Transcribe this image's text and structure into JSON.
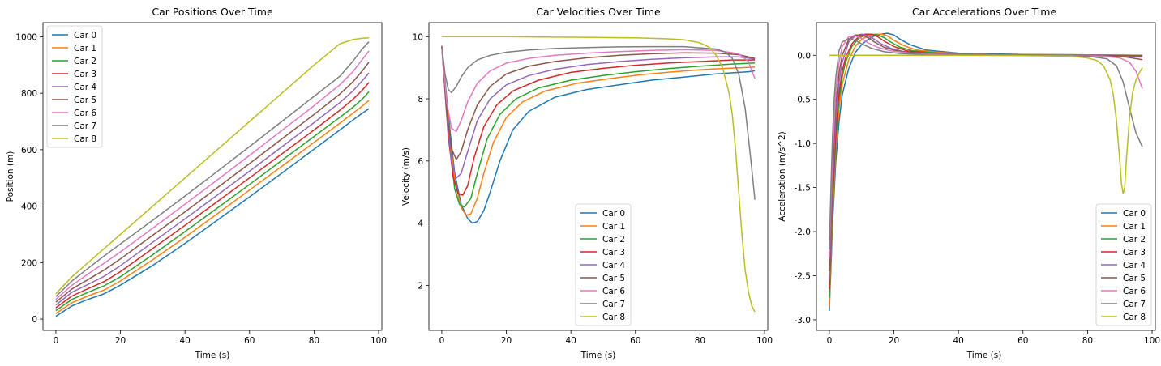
{
  "colors": [
    "#1f77b4",
    "#ff7f0e",
    "#2ca02c",
    "#d62728",
    "#9467bd",
    "#8c564b",
    "#e377c2",
    "#7f7f7f",
    "#bcbd22"
  ],
  "chart_data": [
    {
      "type": "line",
      "title": "Car Positions Over Time",
      "xlabel": "Time (s)",
      "ylabel": "Position (m)",
      "xlim": [
        -4,
        101
      ],
      "ylim": [
        -40,
        1050
      ],
      "xticks": [
        0,
        20,
        40,
        60,
        80,
        100
      ],
      "yticks": [
        0,
        200,
        400,
        600,
        800,
        1000
      ],
      "legend_position": "upper-left",
      "x": [
        0,
        5,
        10,
        15,
        20,
        30,
        40,
        50,
        60,
        70,
        80,
        88,
        92,
        95,
        97
      ],
      "series": [
        {
          "name": "Car 0",
          "values": [
            10,
            47,
            70,
            90,
            120,
            190,
            268,
            350,
            433,
            517,
            602,
            670,
            705,
            730,
            745
          ]
        },
        {
          "name": "Car 1",
          "values": [
            20,
            58,
            82,
            103,
            135,
            210,
            290,
            373,
            457,
            541,
            626,
            694,
            729,
            755,
            775
          ]
        },
        {
          "name": "Car 2",
          "values": [
            30,
            70,
            95,
            118,
            150,
            228,
            310,
            393,
            477,
            562,
            647,
            715,
            750,
            780,
            805
          ]
        },
        {
          "name": "Car 3",
          "values": [
            40,
            82,
            108,
            133,
            168,
            250,
            332,
            416,
            500,
            585,
            670,
            740,
            778,
            812,
            838
          ]
        },
        {
          "name": "Car 4",
          "values": [
            50,
            95,
            123,
            152,
            189,
            272,
            355,
            439,
            524,
            610,
            696,
            767,
            808,
            845,
            872
          ]
        },
        {
          "name": "Car 5",
          "values": [
            60,
            107,
            140,
            174,
            213,
            297,
            380,
            465,
            551,
            638,
            725,
            797,
            840,
            880,
            910
          ]
        },
        {
          "name": "Car 6",
          "values": [
            70,
            120,
            160,
            198,
            238,
            322,
            407,
            493,
            580,
            668,
            756,
            830,
            876,
            920,
            950
          ]
        },
        {
          "name": "Car 7",
          "values": [
            80,
            135,
            180,
            224,
            266,
            350,
            436,
            523,
            611,
            700,
            789,
            860,
            913,
            958,
            982
          ]
        },
        {
          "name": "Car 8",
          "values": [
            90,
            150,
            200,
            250,
            300,
            400,
            500,
            600,
            700,
            800,
            900,
            975,
            990,
            995,
            996
          ]
        }
      ]
    },
    {
      "type": "line",
      "title": "Car Velocities Over Time",
      "xlabel": "Time (s)",
      "ylabel": "Velocity (m/s)",
      "xlim": [
        -4,
        101
      ],
      "ylim": [
        0.55,
        10.45
      ],
      "xticks": [
        0,
        20,
        40,
        60,
        80,
        100
      ],
      "yticks": [
        2,
        4,
        6,
        8,
        10
      ],
      "legend_position": "lower-center",
      "series": [
        {
          "name": "Car 0",
          "x": [
            0,
            2,
            4,
            6,
            8,
            9.5,
            11,
            13,
            15,
            18,
            22,
            27,
            35,
            45,
            55,
            65,
            75,
            85,
            95,
            97
          ],
          "values": [
            9.7,
            7.5,
            5.6,
            4.6,
            4.15,
            4.0,
            4.05,
            4.4,
            5.0,
            6.0,
            7.0,
            7.6,
            8.05,
            8.3,
            8.45,
            8.6,
            8.7,
            8.8,
            8.87,
            8.9
          ]
        },
        {
          "name": "Car 1",
          "x": [
            0,
            2,
            4,
            6,
            7.5,
            9,
            11,
            13,
            16,
            20,
            25,
            32,
            42,
            52,
            62,
            72,
            82,
            92,
            97
          ],
          "values": [
            9.7,
            7.3,
            5.4,
            4.5,
            4.25,
            4.3,
            4.8,
            5.6,
            6.6,
            7.4,
            7.9,
            8.25,
            8.5,
            8.65,
            8.78,
            8.87,
            8.95,
            9.0,
            9.02
          ]
        },
        {
          "name": "Car 2",
          "x": [
            0,
            2,
            4,
            5.5,
            7,
            9,
            11,
            14,
            18,
            23,
            30,
            40,
            50,
            60,
            70,
            80,
            90,
            97
          ],
          "values": [
            9.7,
            7.0,
            5.1,
            4.6,
            4.52,
            4.8,
            5.6,
            6.7,
            7.5,
            8.0,
            8.35,
            8.6,
            8.75,
            8.87,
            8.97,
            9.05,
            9.12,
            9.15
          ]
        },
        {
          "name": "Car 3",
          "x": [
            0,
            2,
            3.5,
            5,
            6.5,
            8,
            10,
            13,
            17,
            22,
            30,
            40,
            50,
            60,
            70,
            80,
            90,
            97
          ],
          "values": [
            9.7,
            6.8,
            5.5,
            4.95,
            4.9,
            5.2,
            6.1,
            7.1,
            7.8,
            8.25,
            8.6,
            8.85,
            8.98,
            9.08,
            9.15,
            9.2,
            9.25,
            9.25
          ]
        },
        {
          "name": "Car 4",
          "x": [
            0,
            1.5,
            3,
            4.5,
            6,
            8,
            11,
            15,
            20,
            27,
            35,
            45,
            55,
            65,
            75,
            85,
            92,
            97
          ],
          "values": [
            9.7,
            7.5,
            6.0,
            5.45,
            5.6,
            6.3,
            7.3,
            8.0,
            8.45,
            8.75,
            8.95,
            9.1,
            9.2,
            9.27,
            9.32,
            9.35,
            9.35,
            9.28
          ]
        },
        {
          "name": "Car 5",
          "x": [
            0,
            1.5,
            3,
            4.5,
            6,
            8,
            11,
            15,
            20,
            27,
            35,
            45,
            55,
            65,
            75,
            85,
            92,
            97
          ],
          "values": [
            9.7,
            7.6,
            6.4,
            6.05,
            6.3,
            7.0,
            7.8,
            8.4,
            8.8,
            9.05,
            9.2,
            9.32,
            9.4,
            9.45,
            9.48,
            9.47,
            9.42,
            9.3
          ]
        },
        {
          "name": "Car 6",
          "x": [
            0,
            1.5,
            3,
            4.5,
            6,
            8,
            11,
            15,
            20,
            27,
            35,
            45,
            55,
            65,
            75,
            85,
            92,
            95,
            97
          ],
          "values": [
            9.7,
            7.9,
            7.05,
            6.95,
            7.3,
            7.9,
            8.5,
            8.9,
            9.15,
            9.3,
            9.4,
            9.47,
            9.52,
            9.56,
            9.58,
            9.56,
            9.45,
            9.2,
            8.65
          ]
        },
        {
          "name": "Car 7",
          "x": [
            0,
            1,
            2,
            3,
            4.5,
            6,
            8,
            11,
            15,
            20,
            27,
            35,
            45,
            55,
            65,
            75,
            85,
            88,
            90,
            92,
            94,
            96,
            97
          ],
          "values": [
            9.7,
            8.8,
            8.3,
            8.2,
            8.4,
            8.7,
            9.0,
            9.25,
            9.4,
            9.5,
            9.57,
            9.62,
            9.65,
            9.67,
            9.68,
            9.68,
            9.6,
            9.5,
            9.3,
            8.8,
            7.7,
            5.8,
            4.75
          ]
        },
        {
          "name": "Car 8",
          "x": [
            0,
            10,
            20,
            30,
            40,
            50,
            60,
            70,
            75,
            80,
            83,
            85,
            87,
            89,
            90,
            91,
            92,
            93,
            94,
            95,
            96,
            97
          ],
          "values": [
            10.0,
            10.0,
            10.0,
            9.99,
            9.98,
            9.97,
            9.96,
            9.93,
            9.9,
            9.8,
            9.65,
            9.4,
            9.0,
            8.2,
            7.5,
            6.4,
            5.0,
            3.6,
            2.5,
            1.8,
            1.35,
            1.15
          ]
        }
      ]
    },
    {
      "type": "line",
      "title": "Car Accelerations Over Time",
      "xlabel": "Time (s)",
      "ylabel": "Acceleration (m/s^2)",
      "xlim": [
        -4,
        101
      ],
      "ylim": [
        -3.12,
        0.37
      ],
      "xticks": [
        0,
        20,
        40,
        60,
        80,
        100
      ],
      "yticks": [
        -3.0,
        -2.5,
        -2.0,
        -1.5,
        -1.0,
        -0.5,
        0.0
      ],
      "legend_position": "lower-right",
      "series": [
        {
          "name": "Car 0",
          "x": [
            0,
            0.5,
            1,
            2,
            3,
            4,
            6,
            8,
            10,
            12,
            14,
            16,
            18,
            20,
            22,
            25,
            30,
            40,
            60,
            80,
            97
          ],
          "values": [
            -2.9,
            -2.4,
            -1.9,
            -1.2,
            -0.75,
            -0.45,
            -0.15,
            0.03,
            0.12,
            0.18,
            0.22,
            0.24,
            0.25,
            0.23,
            0.18,
            0.12,
            0.06,
            0.025,
            0.01,
            0.005,
            0.0
          ]
        },
        {
          "name": "Car 1",
          "x": [
            0,
            0.5,
            1,
            2,
            3,
            4,
            6,
            8,
            10,
            12,
            14,
            16,
            18,
            20,
            23,
            27,
            35,
            50,
            80,
            97
          ],
          "values": [
            -2.85,
            -2.3,
            -1.8,
            -1.05,
            -0.6,
            -0.33,
            -0.05,
            0.1,
            0.18,
            0.22,
            0.24,
            0.24,
            0.22,
            0.17,
            0.11,
            0.06,
            0.03,
            0.01,
            0.005,
            0.0
          ]
        },
        {
          "name": "Car 2",
          "x": [
            0,
            0.5,
            1,
            2,
            3,
            4,
            5,
            7,
            9,
            11,
            13,
            15,
            17,
            19,
            22,
            26,
            35,
            50,
            80,
            97
          ],
          "values": [
            -2.75,
            -2.2,
            -1.7,
            -0.95,
            -0.5,
            -0.25,
            -0.08,
            0.1,
            0.19,
            0.23,
            0.24,
            0.23,
            0.2,
            0.15,
            0.09,
            0.05,
            0.02,
            0.01,
            0.0,
            0.0
          ]
        },
        {
          "name": "Car 3",
          "x": [
            0,
            0.5,
            1,
            2,
            3,
            4,
            5,
            7,
            9,
            11,
            13,
            15,
            17,
            20,
            24,
            30,
            40,
            60,
            97
          ],
          "values": [
            -2.65,
            -2.1,
            -1.6,
            -0.85,
            -0.42,
            -0.18,
            -0.03,
            0.13,
            0.21,
            0.24,
            0.24,
            0.21,
            0.16,
            0.1,
            0.05,
            0.025,
            0.01,
            0.005,
            -0.01
          ]
        },
        {
          "name": "Car 4",
          "x": [
            0,
            0.5,
            1,
            2,
            3,
            4,
            6,
            8,
            10,
            12,
            14,
            16,
            19,
            23,
            30,
            40,
            60,
            80,
            97
          ],
          "values": [
            -2.55,
            -2.0,
            -1.45,
            -0.7,
            -0.3,
            -0.08,
            0.15,
            0.22,
            0.24,
            0.22,
            0.18,
            0.13,
            0.08,
            0.04,
            0.02,
            0.01,
            0.005,
            0.0,
            -0.02
          ]
        },
        {
          "name": "Car 5",
          "x": [
            0,
            0.5,
            1,
            2,
            3,
            4,
            6,
            8,
            10,
            12,
            14,
            17,
            21,
            27,
            35,
            50,
            70,
            85,
            92,
            97
          ],
          "values": [
            -2.45,
            -1.85,
            -1.3,
            -0.55,
            -0.2,
            0.0,
            0.18,
            0.23,
            0.23,
            0.2,
            0.15,
            0.09,
            0.05,
            0.025,
            0.01,
            0.005,
            0.0,
            -0.005,
            -0.02,
            -0.05
          ]
        },
        {
          "name": "Car 6",
          "x": [
            0,
            0.5,
            1,
            2,
            3,
            4,
            6,
            8,
            10,
            12,
            15,
            19,
            25,
            35,
            50,
            70,
            85,
            90,
            93,
            95,
            97
          ],
          "values": [
            -2.3,
            -1.7,
            -1.15,
            -0.4,
            -0.08,
            0.1,
            0.21,
            0.22,
            0.19,
            0.14,
            0.09,
            0.05,
            0.025,
            0.01,
            0.005,
            0.0,
            -0.01,
            -0.03,
            -0.08,
            -0.18,
            -0.38
          ]
        },
        {
          "name": "Car 7",
          "x": [
            0,
            0.5,
            1,
            1.5,
            2,
            3,
            4,
            6,
            8,
            10,
            13,
            17,
            22,
            30,
            45,
            65,
            80,
            86,
            89,
            91,
            93,
            95,
            97
          ],
          "values": [
            -2.2,
            -1.5,
            -0.9,
            -0.5,
            -0.25,
            0.05,
            0.15,
            0.19,
            0.17,
            0.13,
            0.08,
            0.04,
            0.02,
            0.01,
            0.005,
            0.0,
            -0.01,
            -0.04,
            -0.12,
            -0.3,
            -0.6,
            -0.88,
            -1.04
          ]
        },
        {
          "name": "Car 8",
          "x": [
            0,
            20,
            40,
            60,
            75,
            80,
            83,
            85,
            87,
            88,
            89,
            90,
            90.5,
            91,
            91.5,
            92,
            93,
            94,
            95,
            96,
            97
          ],
          "values": [
            0.0,
            0.0,
            0.0,
            -0.005,
            -0.01,
            -0.03,
            -0.06,
            -0.12,
            -0.28,
            -0.45,
            -0.75,
            -1.2,
            -1.45,
            -1.57,
            -1.5,
            -1.2,
            -0.7,
            -0.42,
            -0.28,
            -0.2,
            -0.14
          ]
        }
      ]
    }
  ]
}
